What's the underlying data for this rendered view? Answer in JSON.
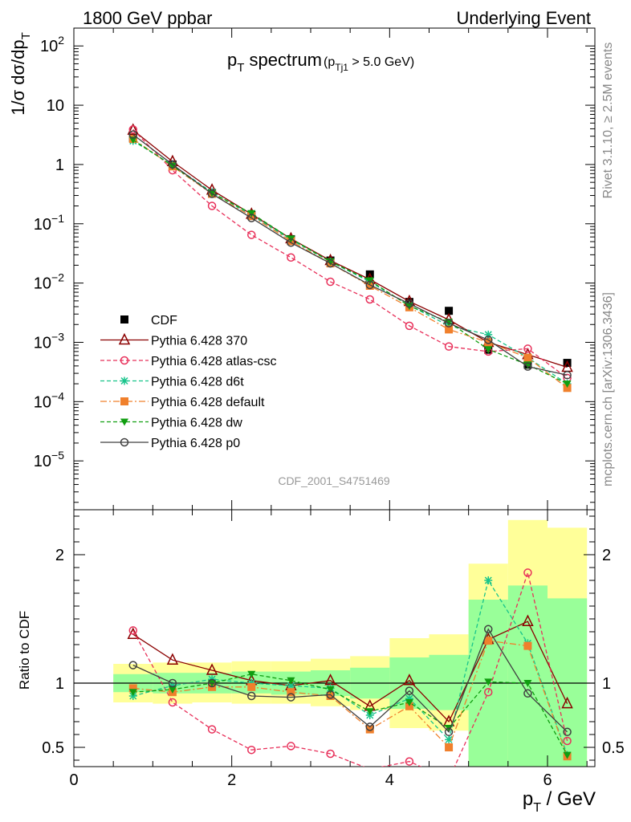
{
  "header": {
    "left_title": "1800 GeV ppbar",
    "right_title": "Underlying Event",
    "rivet_label": "Rivet 3.1.10, ≥ 2.5M events",
    "mcplots_label": "mcplots.cern.ch [arXiv:1306.3436]",
    "analysis_id": "CDF_2001_S4751469"
  },
  "chart_data": [
    {
      "type": "line",
      "panel": "main",
      "title": "p_T spectrum",
      "title_main": "p",
      "title_main_sub": "T",
      "title_main_rest": " spectrum",
      "title_cut": "(p",
      "title_cut_sub": "Tj1",
      "title_cut_rest": " > 5.0 GeV)",
      "ylabel": "1/σ dσ/dp_T",
      "ylabel_main": "1/σ dσ/dp",
      "ylabel_sub": "T",
      "y_scale": "log",
      "ylim": [
        1.5e-06,
        200
      ],
      "xlim": [
        0,
        6.6
      ],
      "y_tick_labels": [
        {
          "value": 1e-05,
          "base": "10",
          "exp": "−5"
        },
        {
          "value": 0.0001,
          "base": "10",
          "exp": "−4"
        },
        {
          "value": 0.001,
          "base": "10",
          "exp": "−3"
        },
        {
          "value": 0.01,
          "base": "10",
          "exp": "−2"
        },
        {
          "value": 0.1,
          "base": "10",
          "exp": "−1"
        },
        {
          "value": 1,
          "base": "1",
          "exp": ""
        },
        {
          "value": 10,
          "base": "10",
          "exp": ""
        },
        {
          "value": 100,
          "base": "10",
          "exp": "2"
        }
      ],
      "legend_position": "bottom-left",
      "x": [
        0.75,
        1.25,
        1.75,
        2.25,
        2.75,
        3.25,
        3.75,
        4.25,
        4.75,
        5.25,
        5.75,
        6.25
      ],
      "series": [
        {
          "name": "CDF",
          "color": "#000000",
          "marker": "square",
          "line": "none",
          "values": [
            2.8,
            1.0,
            0.33,
            0.14,
            0.055,
            0.024,
            0.014,
            0.0048,
            0.0034,
            0.00075,
            0.00042,
            0.00045
          ]
        },
        {
          "name": "Pythia 6.428 370",
          "color": "#8b0000",
          "marker": "triangle-open",
          "line": "solid",
          "values": [
            3.8,
            1.12,
            0.37,
            0.145,
            0.056,
            0.024,
            0.0115,
            0.0049,
            0.0024,
            0.001,
            0.00062,
            0.00038
          ]
        },
        {
          "name": "Pythia 6.428 atlas-csc",
          "color": "#e8305a",
          "marker": "circle-open",
          "line": "dashed",
          "values": [
            3.9,
            0.8,
            0.2,
            0.065,
            0.027,
            0.0105,
            0.0053,
            0.0019,
            0.00085,
            0.0007,
            0.00078,
            0.00025
          ]
        },
        {
          "name": "Pythia 6.428 d6t",
          "color": "#18c48b",
          "marker": "star",
          "line": "dashed",
          "values": [
            2.5,
            0.98,
            0.34,
            0.14,
            0.054,
            0.023,
            0.0105,
            0.0042,
            0.0019,
            0.00135,
            0.00055,
            0.0002
          ]
        },
        {
          "name": "Pythia 6.428 default",
          "color": "#f0802c",
          "marker": "square",
          "line": "dashdot",
          "values": [
            2.7,
            0.93,
            0.32,
            0.135,
            0.051,
            0.0215,
            0.009,
            0.0039,
            0.00165,
            0.001,
            0.00055,
            0.00017
          ]
        },
        {
          "name": "Pythia 6.428 dw",
          "color": "#109e10",
          "marker": "triangle-down",
          "line": "dashed",
          "values": [
            2.6,
            0.95,
            0.33,
            0.15,
            0.056,
            0.023,
            0.011,
            0.0041,
            0.0022,
            0.00076,
            0.00042,
            0.0002
          ]
        },
        {
          "name": "Pythia 6.428 p0",
          "color": "#404040",
          "marker": "circle-open",
          "line": "solid",
          "values": [
            3.2,
            1.0,
            0.32,
            0.125,
            0.048,
            0.0215,
            0.0093,
            0.0045,
            0.0021,
            0.0011,
            0.00039,
            0.00028
          ]
        }
      ]
    },
    {
      "type": "line",
      "panel": "ratio",
      "ylabel": "Ratio to CDF",
      "xlabel": "p_T / GeV",
      "xlabel_main": "p",
      "xlabel_sub": "T",
      "xlabel_rest": " / GeV",
      "xlim": [
        0,
        6.6
      ],
      "ylim": [
        0.35,
        2.35
      ],
      "x_tick_labels": [
        "0",
        "2",
        "4",
        "6"
      ],
      "y_tick_labels": [
        "0.5",
        "1",
        "2"
      ],
      "bands": {
        "x_edges": [
          0.5,
          1.0,
          1.5,
          2.0,
          2.5,
          3.0,
          3.5,
          4.0,
          4.5,
          5.0,
          5.5,
          6.0,
          6.5
        ],
        "yellow": [
          [
            0.85,
            1.15
          ],
          [
            0.84,
            1.16
          ],
          [
            0.85,
            1.16
          ],
          [
            0.84,
            1.17
          ],
          [
            0.84,
            1.17
          ],
          [
            0.82,
            1.19
          ],
          [
            0.79,
            1.21
          ],
          [
            0.65,
            1.35
          ],
          [
            0.63,
            1.38
          ],
          [
            0.2,
            1.93
          ],
          [
            0.2,
            2.27
          ],
          [
            0.2,
            2.21
          ]
        ],
        "green": [
          [
            0.93,
            1.07
          ],
          [
            0.92,
            1.08
          ],
          [
            0.92,
            1.08
          ],
          [
            0.92,
            1.09
          ],
          [
            0.91,
            1.09
          ],
          [
            0.9,
            1.1
          ],
          [
            0.88,
            1.12
          ],
          [
            0.8,
            1.2
          ],
          [
            0.79,
            1.22
          ],
          [
            0.35,
            1.65
          ],
          [
            0.35,
            1.76
          ],
          [
            0.35,
            1.66
          ]
        ]
      },
      "series": [
        {
          "name": "Pythia 6.428 370",
          "values": [
            1.38,
            1.18,
            1.1,
            1.02,
            0.98,
            1.02,
            0.82,
            1.02,
            0.7,
            1.34,
            1.48,
            0.84
          ]
        },
        {
          "name": "Pythia 6.428 atlas-csc",
          "values": [
            1.41,
            0.85,
            0.64,
            0.48,
            0.51,
            0.45,
            0.33,
            0.39,
            0.25,
            0.93,
            1.86,
            0.55
          ]
        },
        {
          "name": "Pythia 6.428 d6t",
          "values": [
            0.9,
            0.98,
            1.03,
            1.0,
            0.98,
            0.96,
            0.75,
            0.88,
            0.56,
            1.8,
            1.31,
            0.44
          ]
        },
        {
          "name": "Pythia 6.428 default",
          "values": [
            0.96,
            0.93,
            0.97,
            0.97,
            0.93,
            0.9,
            0.64,
            0.82,
            0.5,
            1.33,
            1.29,
            0.43
          ]
        },
        {
          "name": "Pythia 6.428 dw",
          "values": [
            0.93,
            0.95,
            1.0,
            1.07,
            1.02,
            0.95,
            0.78,
            0.85,
            0.65,
            1.01,
            1.0,
            0.44
          ]
        },
        {
          "name": "Pythia 6.428 p0",
          "values": [
            1.14,
            1.0,
            1.0,
            0.9,
            0.89,
            0.91,
            0.66,
            0.94,
            0.62,
            1.42,
            0.92,
            0.62
          ]
        }
      ]
    }
  ]
}
